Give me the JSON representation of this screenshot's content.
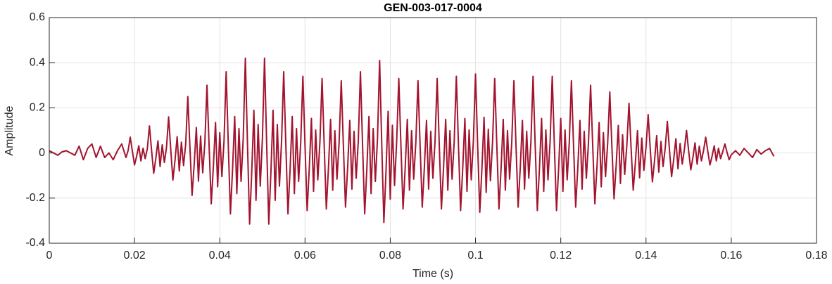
{
  "chart_data": {
    "type": "line",
    "title": "GEN-003-017-0004",
    "x_label": "Time (s)",
    "y_label": "Amplitude",
    "color": "#a2142f",
    "grid": true,
    "xlim": [
      0,
      0.18
    ],
    "xticks": [
      0,
      0.02,
      0.04,
      0.06,
      0.08,
      0.1,
      0.12,
      0.14,
      0.16,
      0.18
    ],
    "ylim": [
      -0.4,
      0.6
    ],
    "yticks": [
      -0.4,
      -0.2,
      0,
      0.2,
      0.4,
      0.6
    ],
    "x": [
      0,
      0.001,
      0.002,
      0.003,
      0.004,
      0.005,
      0.006,
      0.007,
      0.008,
      0.009,
      0.01,
      0.011,
      0.012,
      0.013,
      0.014,
      0.015,
      0.016,
      0.017,
      0.018,
      0.0185,
      0.019,
      0.0195,
      0.02,
      0.0205,
      0.021,
      0.0215,
      0.022,
      0.0225,
      0.023,
      0.0235,
      0.024,
      0.0245,
      0.025,
      0.0255,
      0.026,
      0.0265,
      0.027,
      0.0275,
      0.028,
      0.0285,
      0.029,
      0.0295,
      0.03,
      0.0305,
      0.031,
      0.0315,
      0.032,
      0.0325,
      0.033,
      0.0335,
      0.034,
      0.0345,
      0.035,
      0.0355,
      0.036,
      0.0365,
      0.037,
      0.0375,
      0.038,
      0.0385,
      0.039,
      0.0395,
      0.04,
      0.0405,
      0.041,
      0.0415,
      0.042,
      0.0425,
      0.043,
      0.0435,
      0.044,
      0.0445,
      0.045,
      0.0455,
      0.046,
      0.0465,
      0.047,
      0.0475,
      0.048,
      0.0485,
      0.049,
      0.0495,
      0.05,
      0.0505,
      0.051,
      0.0515,
      0.052,
      0.0525,
      0.053,
      0.0535,
      0.054,
      0.0545,
      0.055,
      0.0555,
      0.056,
      0.0565,
      0.057,
      0.0575,
      0.058,
      0.0585,
      0.059,
      0.0595,
      0.06,
      0.0605,
      0.061,
      0.0615,
      0.062,
      0.0625,
      0.063,
      0.0635,
      0.064,
      0.0645,
      0.065,
      0.0655,
      0.066,
      0.0665,
      0.067,
      0.0675,
      0.068,
      0.0685,
      0.069,
      0.0695,
      0.07,
      0.0705,
      0.071,
      0.0715,
      0.072,
      0.0725,
      0.073,
      0.0735,
      0.074,
      0.0745,
      0.075,
      0.0755,
      0.076,
      0.0765,
      0.077,
      0.0775,
      0.078,
      0.0785,
      0.079,
      0.0795,
      0.08,
      0.0805,
      0.081,
      0.0815,
      0.082,
      0.0825,
      0.083,
      0.0835,
      0.084,
      0.0845,
      0.085,
      0.0855,
      0.086,
      0.0865,
      0.087,
      0.0875,
      0.088,
      0.0885,
      0.089,
      0.0895,
      0.09,
      0.0905,
      0.091,
      0.0915,
      0.092,
      0.0925,
      0.093,
      0.0935,
      0.094,
      0.0945,
      0.095,
      0.0955,
      0.096,
      0.0965,
      0.097,
      0.0975,
      0.098,
      0.0985,
      0.099,
      0.0995,
      0.1,
      0.1005,
      0.101,
      0.1015,
      0.102,
      0.1025,
      0.103,
      0.1035,
      0.104,
      0.1045,
      0.105,
      0.1055,
      0.106,
      0.1065,
      0.107,
      0.1075,
      0.108,
      0.1085,
      0.109,
      0.1095,
      0.11,
      0.1105,
      0.111,
      0.1115,
      0.112,
      0.1125,
      0.113,
      0.1135,
      0.114,
      0.1145,
      0.115,
      0.1155,
      0.116,
      0.1165,
      0.117,
      0.1175,
      0.118,
      0.1185,
      0.119,
      0.1195,
      0.12,
      0.1205,
      0.121,
      0.1215,
      0.122,
      0.1225,
      0.123,
      0.1235,
      0.124,
      0.1245,
      0.125,
      0.1255,
      0.126,
      0.1265,
      0.127,
      0.1275,
      0.128,
      0.1285,
      0.129,
      0.1295,
      0.13,
      0.1305,
      0.131,
      0.1315,
      0.132,
      0.1325,
      0.133,
      0.1335,
      0.134,
      0.1345,
      0.135,
      0.1355,
      0.136,
      0.1365,
      0.137,
      0.1375,
      0.138,
      0.1385,
      0.139,
      0.1395,
      0.14,
      0.1405,
      0.141,
      0.1415,
      0.142,
      0.1425,
      0.143,
      0.1435,
      0.144,
      0.1445,
      0.145,
      0.1455,
      0.146,
      0.1465,
      0.147,
      0.1475,
      0.148,
      0.1485,
      0.149,
      0.1495,
      0.15,
      0.1505,
      0.151,
      0.1515,
      0.152,
      0.1525,
      0.153,
      0.1535,
      0.154,
      0.1545,
      0.155,
      0.1555,
      0.156,
      0.1565,
      0.157,
      0.1575,
      0.158,
      0.1585,
      0.159,
      0.1595,
      0.16,
      0.161,
      0.162,
      0.163,
      0.164,
      0.165,
      0.166,
      0.167,
      0.168,
      0.169,
      0.17
    ],
    "values": [
      0.01,
      0.0,
      -0.01,
      0.005,
      0.01,
      0.0,
      -0.01,
      0.03,
      -0.03,
      0.02,
      0.04,
      -0.02,
      0.03,
      -0.02,
      0.0,
      -0.03,
      0.01,
      0.04,
      -0.02,
      0.011,
      0.07,
      0.007,
      -0.053,
      -0.014,
      0.032,
      -0.035,
      0.021,
      -0.025,
      0.018,
      0.12,
      0.012,
      -0.09,
      -0.024,
      0.054,
      -0.06,
      0.036,
      -0.042,
      0.024,
      0.16,
      0.016,
      -0.12,
      -0.032,
      0.072,
      -0.08,
      0.048,
      -0.056,
      0.038,
      0.25,
      0.025,
      -0.188,
      -0.05,
      0.113,
      -0.125,
      0.075,
      -0.088,
      0.045,
      0.3,
      0.03,
      -0.225,
      -0.06,
      0.135,
      -0.15,
      0.09,
      -0.105,
      0.054,
      0.36,
      0.036,
      -0.27,
      -0.072,
      0.162,
      -0.18,
      0.108,
      -0.126,
      0.063,
      0.42,
      0.042,
      -0.315,
      -0.084,
      0.189,
      -0.21,
      0.126,
      -0.147,
      0.063,
      0.42,
      0.042,
      -0.315,
      -0.084,
      0.189,
      -0.21,
      0.126,
      -0.147,
      0.054,
      0.36,
      0.036,
      -0.27,
      -0.072,
      0.162,
      -0.18,
      0.108,
      -0.126,
      0.051,
      0.34,
      0.034,
      -0.255,
      -0.068,
      0.153,
      -0.17,
      0.102,
      -0.119,
      0.05,
      0.33,
      0.033,
      -0.248,
      -0.066,
      0.149,
      -0.165,
      0.099,
      -0.116,
      0.048,
      0.32,
      0.032,
      -0.24,
      -0.064,
      0.144,
      -0.16,
      0.096,
      -0.112,
      0.054,
      0.36,
      0.036,
      -0.27,
      -0.072,
      0.162,
      -0.18,
      0.108,
      -0.126,
      0.062,
      0.41,
      0.041,
      -0.308,
      -0.082,
      0.185,
      -0.205,
      0.123,
      -0.144,
      0.05,
      0.33,
      0.033,
      -0.248,
      -0.066,
      0.149,
      -0.165,
      0.099,
      -0.116,
      0.048,
      0.32,
      0.032,
      -0.24,
      -0.064,
      0.144,
      -0.16,
      0.096,
      -0.112,
      0.05,
      0.33,
      0.033,
      -0.248,
      -0.066,
      0.149,
      -0.165,
      0.099,
      -0.116,
      0.051,
      0.34,
      0.034,
      -0.255,
      -0.068,
      0.153,
      -0.17,
      0.102,
      -0.119,
      0.053,
      0.35,
      0.035,
      -0.263,
      -0.07,
      0.158,
      -0.175,
      0.105,
      -0.123,
      0.05,
      0.33,
      0.033,
      -0.248,
      -0.066,
      0.149,
      -0.165,
      0.099,
      -0.116,
      0.048,
      0.32,
      0.032,
      -0.24,
      -0.064,
      0.144,
      -0.16,
      0.096,
      -0.112,
      0.051,
      0.34,
      0.034,
      -0.255,
      -0.068,
      0.153,
      -0.17,
      0.102,
      -0.119,
      0.051,
      0.34,
      0.034,
      -0.255,
      -0.068,
      0.153,
      -0.17,
      0.102,
      -0.119,
      0.048,
      0.32,
      0.032,
      -0.24,
      -0.064,
      0.144,
      -0.16,
      0.096,
      -0.112,
      0.045,
      0.3,
      0.03,
      -0.225,
      -0.06,
      0.135,
      -0.15,
      0.09,
      -0.105,
      0.041,
      0.27,
      0.027,
      -0.203,
      -0.054,
      0.122,
      -0.135,
      0.081,
      -0.095,
      0.033,
      0.22,
      0.022,
      -0.165,
      -0.044,
      0.099,
      -0.11,
      0.066,
      -0.077,
      0.026,
      0.17,
      0.017,
      -0.128,
      -0.034,
      0.077,
      -0.085,
      0.051,
      -0.06,
      0.021,
      0.14,
      0.014,
      -0.105,
      -0.028,
      0.063,
      -0.07,
      0.042,
      -0.049,
      0.015,
      0.1,
      0.01,
      -0.075,
      -0.02,
      0.045,
      -0.05,
      0.03,
      -0.035,
      0.011,
      0.07,
      0.007,
      -0.053,
      -0.014,
      0.032,
      -0.035,
      0.021,
      -0.025,
      0.006,
      0.04,
      0.004,
      -0.03,
      -0.008,
      0.01,
      -0.01,
      0.02,
      0.0,
      -0.02,
      0.015,
      -0.005,
      0.01,
      0.02,
      -0.015
    ]
  }
}
